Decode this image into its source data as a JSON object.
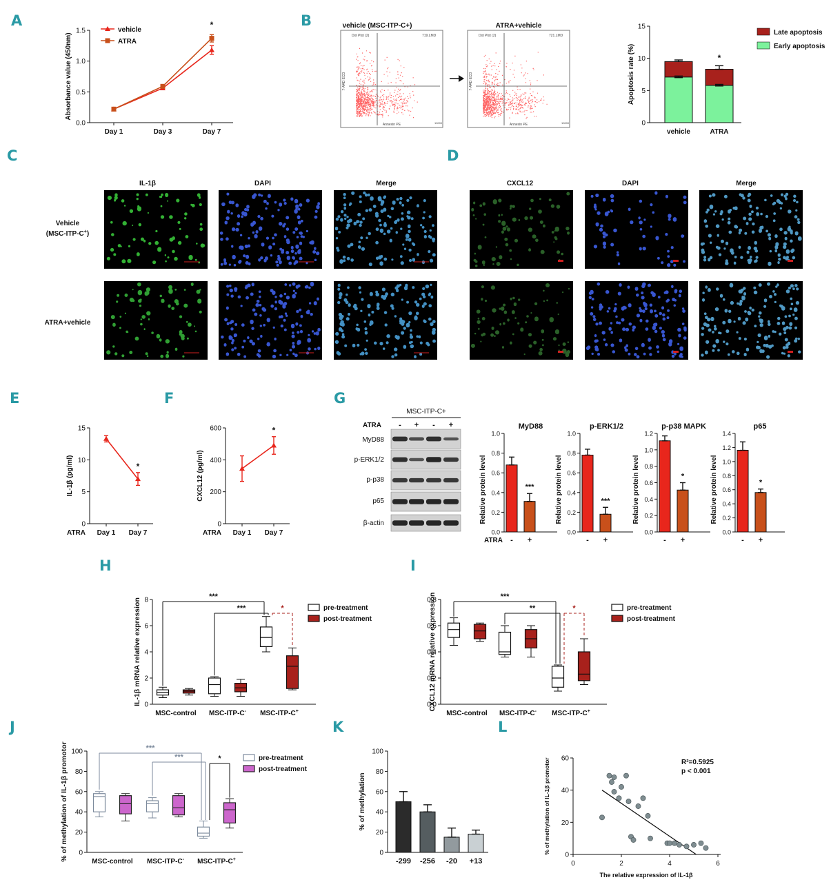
{
  "panel_letters": [
    "A",
    "B",
    "C",
    "D",
    "E",
    "F",
    "G",
    "H",
    "I",
    "J",
    "K",
    "L"
  ],
  "colors": {
    "red": "#e8261c",
    "orange": "#c8501b",
    "dark_red": "#a8211c",
    "green": "#7cf29c",
    "purple": "#cc66cc",
    "steel": "#7c8a9c",
    "dark": "#2b2b2b",
    "grey_dark": "#555d60",
    "grey_light": "#c9d0d3",
    "letter": "#2a9aa5"
  },
  "flow": {
    "titles": [
      "vehicle (MSC-ITP-C+)",
      "ATRA+vehicle"
    ],
    "plot_title": "Dot Plot (2)",
    "files": [
      "719.LMD",
      "721.LMD"
    ],
    "xaxis": "Annexin PE",
    "yaxis": "7-AAD ECD",
    "xmax": "10000"
  },
  "micro": {
    "C": {
      "cols": [
        "IL-1β",
        "DAPI",
        "Merge"
      ],
      "rows": [
        "Vehicle (MSC-ITP-C+)",
        "ATRA+vehicle"
      ]
    },
    "D": {
      "cols": [
        "CXCL12",
        "DAPI",
        "Merge"
      ]
    }
  },
  "blot": {
    "group": "MSC-ITP-C+",
    "atra_label": "ATRA",
    "atra_signs": [
      "-",
      "+",
      "-",
      "+"
    ],
    "rows": [
      "MyD88",
      "p-ERK1/2",
      "p-p38",
      "p65",
      "β-actin"
    ]
  },
  "chart_data": [
    {
      "panel": "A",
      "type": "line",
      "x": [
        "Day 1",
        "Day 3",
        "Day 7"
      ],
      "ylabel": "Absorbance value (450nm)",
      "ylim": [
        0,
        1.5
      ],
      "yticks": [
        0.0,
        0.5,
        1.0,
        1.5
      ],
      "series": [
        {
          "name": "vehicle",
          "values": [
            0.22,
            0.56,
            1.18
          ],
          "errors": [
            0.01,
            0.02,
            0.07
          ]
        },
        {
          "name": "ATRA",
          "values": [
            0.22,
            0.59,
            1.37
          ],
          "errors": [
            0.01,
            0.02,
            0.06
          ]
        }
      ],
      "annotations": [
        {
          "x": "Day 7",
          "text": "*"
        }
      ]
    },
    {
      "panel": "B",
      "type": "bar",
      "stacked": true,
      "categories": [
        "vehicle",
        "ATRA"
      ],
      "ylabel": "Apoptosis rate (%)",
      "ylim": [
        0,
        15
      ],
      "yticks": [
        0,
        5,
        10,
        15
      ],
      "series": [
        {
          "name": "Early apoptosis",
          "values": [
            7.1,
            5.8
          ]
        },
        {
          "name": "Late apoptosis",
          "values": [
            2.4,
            2.5
          ]
        }
      ],
      "errors": [
        0.25,
        0.55
      ],
      "annotations": [
        {
          "x": "ATRA",
          "text": "*"
        }
      ]
    },
    {
      "panel": "E",
      "type": "line",
      "x": [
        "Day 1",
        "Day 7"
      ],
      "xprefix": "ATRA",
      "ylabel": "IL-1β (pg/ml)",
      "ylim": [
        0,
        15
      ],
      "yticks": [
        0,
        5,
        10,
        15
      ],
      "series": [
        {
          "values": [
            13.3,
            7.0
          ],
          "errors": [
            0.5,
            1.0
          ]
        }
      ],
      "annotations": [
        {
          "x": "Day 7",
          "text": "*"
        }
      ]
    },
    {
      "panel": "F",
      "type": "line",
      "x": [
        "Day 1",
        "Day 7"
      ],
      "xprefix": "ATRA",
      "ylabel": "CXCL12 (pg/ml)",
      "ylim": [
        0,
        600
      ],
      "yticks": [
        0,
        200,
        400,
        600
      ],
      "series": [
        {
          "values": [
            345,
            490
          ],
          "errors": [
            80,
            55
          ]
        }
      ],
      "annotations": [
        {
          "x": "Day 7",
          "text": "*"
        }
      ]
    },
    {
      "panel": "G",
      "type": "bar",
      "ylabel": "Relative protein level",
      "xprefix": "ATRA",
      "categories": [
        "-",
        "+"
      ],
      "subplots": [
        {
          "title": "MyD88",
          "ylim": [
            0,
            1.0
          ],
          "yticks": [
            0.0,
            0.2,
            0.4,
            0.6,
            0.8,
            1.0
          ],
          "values": [
            0.68,
            0.31
          ],
          "errors": [
            0.08,
            0.08
          ],
          "sig": "***"
        },
        {
          "title": "p-ERK1/2",
          "ylim": [
            0,
            1.0
          ],
          "yticks": [
            0.0,
            0.2,
            0.4,
            0.6,
            0.8,
            1.0
          ],
          "values": [
            0.78,
            0.18
          ],
          "errors": [
            0.06,
            0.07
          ],
          "sig": "***"
        },
        {
          "title": "p-p38 MAPK",
          "ylim": [
            0,
            1.2
          ],
          "yticks": [
            0.0,
            0.2,
            0.4,
            0.6,
            0.8,
            1.0,
            1.2
          ],
          "values": [
            1.11,
            0.51
          ],
          "errors": [
            0.06,
            0.09
          ],
          "sig": "*"
        },
        {
          "title": "p65",
          "ylim": [
            0,
            1.4
          ],
          "yticks": [
            0.0,
            0.2,
            0.4,
            0.6,
            0.8,
            1.0,
            1.2,
            1.4
          ],
          "values": [
            1.16,
            0.56
          ],
          "errors": [
            0.12,
            0.05
          ],
          "sig": "*"
        }
      ]
    },
    {
      "panel": "H",
      "type": "box",
      "categories": [
        "MSC-control",
        "MSC-ITP-C-",
        "MSC-ITP-C+"
      ],
      "ylabel": "IL-1β mRNA relative expression",
      "ylim": [
        0,
        8
      ],
      "yticks": [
        0,
        2,
        4,
        6,
        8
      ],
      "series": [
        {
          "name": "pre-treatment",
          "boxes": [
            [
              0.5,
              0.7,
              0.9,
              1.1,
              1.3
            ],
            [
              0.6,
              0.8,
              1.5,
              2.0,
              2.1
            ],
            [
              4.0,
              4.4,
              5.1,
              5.9,
              6.7
            ]
          ]
        },
        {
          "name": "post-treatment",
          "boxes": [
            [
              0.7,
              0.85,
              1.0,
              1.1,
              1.2
            ],
            [
              0.6,
              0.95,
              1.25,
              1.6,
              1.9
            ],
            [
              1.1,
              1.2,
              2.9,
              3.7,
              4.3
            ]
          ]
        }
      ],
      "significance": [
        "***",
        "***",
        "*"
      ]
    },
    {
      "panel": "I",
      "type": "box",
      "categories": [
        "MSC-control",
        "MSC-ITP-C-",
        "MSC-ITP-C+"
      ],
      "ylabel": "CXCL12 mRNA relative expression",
      "ylim": [
        0,
        0.8
      ],
      "yticks": [
        0.0,
        0.2,
        0.4,
        0.6,
        0.8
      ],
      "series": [
        {
          "name": "pre-treatment",
          "boxes": [
            [
              0.45,
              0.51,
              0.57,
              0.62,
              0.66
            ],
            [
              0.36,
              0.38,
              0.4,
              0.55,
              0.6
            ],
            [
              0.1,
              0.13,
              0.2,
              0.29,
              0.3
            ]
          ]
        },
        {
          "name": "post-treatment",
          "boxes": [
            [
              0.48,
              0.5,
              0.56,
              0.61,
              0.62
            ],
            [
              0.36,
              0.43,
              0.5,
              0.57,
              0.6
            ],
            [
              0.15,
              0.18,
              0.23,
              0.4,
              0.5
            ]
          ]
        }
      ],
      "significance": [
        "***",
        "**",
        "*"
      ]
    },
    {
      "panel": "J",
      "type": "box",
      "categories": [
        "MSC-control",
        "MSC-ITP-C-",
        "MSC-ITP-C+"
      ],
      "ylabel": "% of methylation of IL-1β promotor",
      "ylim": [
        0,
        100
      ],
      "yticks": [
        0,
        20,
        40,
        60,
        80,
        100
      ],
      "series": [
        {
          "name": "pre-treatment",
          "boxes": [
            [
              35,
              40,
              55,
              58,
              60
            ],
            [
              34,
              40,
              48,
              51,
              54
            ],
            [
              14,
              16,
              19,
              25,
              31
            ]
          ]
        },
        {
          "name": "post-treatment",
          "boxes": [
            [
              31,
              38,
              48,
              56,
              58
            ],
            [
              35,
              37,
              44,
              56,
              58
            ],
            [
              24,
              29,
              42,
              49,
              53
            ]
          ]
        }
      ],
      "significance": [
        "***",
        "***",
        "*"
      ]
    },
    {
      "panel": "K",
      "type": "bar",
      "categories": [
        "-299",
        "-256",
        "-20",
        "+13"
      ],
      "ylabel": "% of methylation",
      "ylim": [
        0,
        100
      ],
      "yticks": [
        0,
        20,
        40,
        60,
        80,
        100
      ],
      "values": [
        50,
        40,
        15,
        18
      ],
      "errors": [
        10,
        7,
        9,
        4
      ]
    },
    {
      "panel": "L",
      "type": "scatter",
      "xlabel": "The relative expression of IL-1β",
      "ylabel": "% of methylation of IL-1β promotor",
      "xlim": [
        0,
        6
      ],
      "ylim": [
        0,
        60
      ],
      "xticks": [
        0,
        2,
        4,
        6
      ],
      "yticks": [
        0,
        20,
        40,
        60
      ],
      "points": [
        [
          1.2,
          23
        ],
        [
          1.5,
          49
        ],
        [
          1.7,
          48
        ],
        [
          1.6,
          45
        ],
        [
          1.7,
          39
        ],
        [
          1.9,
          35
        ],
        [
          2.0,
          42
        ],
        [
          2.2,
          49
        ],
        [
          2.3,
          33
        ],
        [
          2.4,
          11
        ],
        [
          2.5,
          9
        ],
        [
          2.7,
          30
        ],
        [
          2.9,
          35
        ],
        [
          3.1,
          24
        ],
        [
          3.2,
          10
        ],
        [
          3.9,
          7
        ],
        [
          4.0,
          7
        ],
        [
          4.2,
          7
        ],
        [
          4.4,
          6
        ],
        [
          4.7,
          5
        ],
        [
          5.0,
          6
        ],
        [
          5.3,
          7
        ],
        [
          5.5,
          4
        ]
      ],
      "fit": [
        [
          1.2,
          40
        ],
        [
          5.1,
          0
        ]
      ],
      "annotation": [
        "R²=0.5925",
        "p < 0.001"
      ]
    }
  ]
}
